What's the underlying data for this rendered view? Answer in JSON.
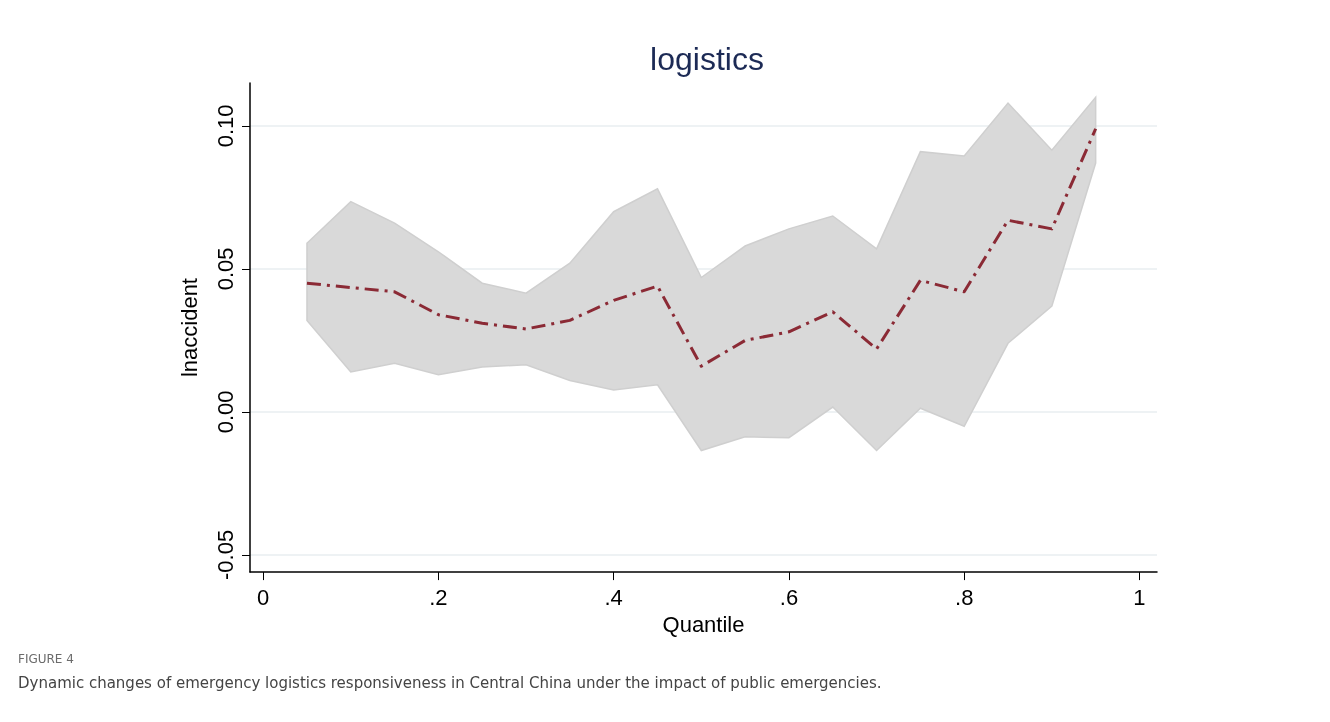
{
  "chart_data": {
    "type": "line",
    "title": "logistics",
    "xlabel": "Quantile",
    "ylabel": "lnaccident",
    "x": [
      0.05,
      0.1,
      0.15,
      0.2,
      0.25,
      0.3,
      0.35,
      0.4,
      0.45,
      0.5,
      0.55,
      0.6,
      0.65,
      0.7,
      0.75,
      0.8,
      0.85,
      0.9,
      0.95
    ],
    "series": [
      {
        "color": "#8b2a35",
        "line_style": "dashed",
        "values": [
          0.045,
          0.0435,
          0.042,
          0.034,
          0.031,
          0.029,
          0.032,
          0.039,
          0.044,
          0.016,
          0.025,
          0.028,
          0.035,
          0.022,
          0.046,
          0.042,
          0.067,
          0.064,
          0.099
        ],
        "upper": [
          0.059,
          0.0735,
          0.066,
          0.056,
          0.045,
          0.0415,
          0.052,
          0.07,
          0.078,
          0.047,
          0.058,
          0.064,
          0.0685,
          0.057,
          0.091,
          0.0895,
          0.108,
          0.0915,
          0.11
        ],
        "lower": [
          0.032,
          0.014,
          0.017,
          0.013,
          0.0157,
          0.0165,
          0.011,
          0.0077,
          0.0095,
          -0.0135,
          -0.0087,
          -0.009,
          0.0017,
          -0.0135,
          0.0013,
          -0.005,
          0.024,
          0.037,
          0.087
        ]
      }
    ],
    "xlim": [
      -0.015,
      1.02
    ],
    "xticks": [
      0,
      {
        "value": 0.2,
        "label": ".2"
      },
      {
        "value": 0.4,
        "label": ".4"
      },
      {
        "value": 0.6,
        "label": ".6"
      },
      {
        "value": 0.8,
        "label": ".8"
      },
      1
    ],
    "ylim": [
      -0.056,
      0.115
    ],
    "yticks": [
      -0.05,
      {
        "value": 0,
        "label": "0.00"
      },
      0.05,
      {
        "value": 0.1,
        "label": "0.10"
      }
    ],
    "grid": "y",
    "marker": "none",
    "annotations": [
      "FIGURE 4",
      "Dynamic changes of emergency logistics responsiveness in Central China under the impact of public emergencies."
    ]
  }
}
